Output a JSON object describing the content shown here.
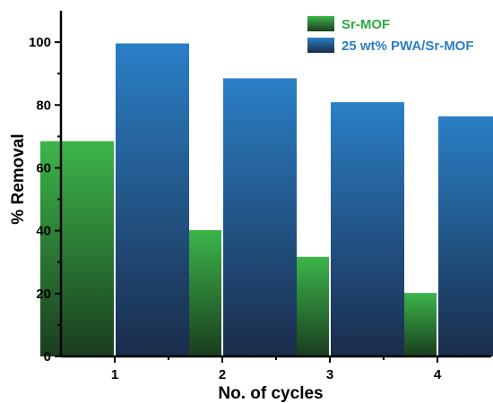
{
  "colors": {
    "sr_mof_top": "#3cb54a",
    "sr_mof_bottom": "#1a3d1f",
    "pwa_top": "#2a7fc6",
    "pwa_bottom": "#1a2c4a",
    "legend_text_sr": "#2eaa44",
    "legend_text_pwa": "#2a7fc6"
  },
  "chart_data": {
    "type": "bar",
    "categories": [
      "1",
      "2",
      "3",
      "4"
    ],
    "series": [
      {
        "name": "Sr-MOF",
        "values": [
          68.5,
          40.2,
          31.7,
          20.2
        ],
        "color_key": "sr_mof"
      },
      {
        "name": "25 wt% PWA/Sr-MOF",
        "values": [
          99.6,
          88.5,
          80.9,
          76.4
        ],
        "color_key": "pwa"
      }
    ],
    "xlabel": "No. of cycles",
    "ylabel": "% Removal",
    "ylim": [
      0,
      110
    ],
    "yticks": [
      "0",
      "20",
      "40",
      "60",
      "80",
      "100"
    ],
    "legend_position": "top-right",
    "grid": false
  }
}
